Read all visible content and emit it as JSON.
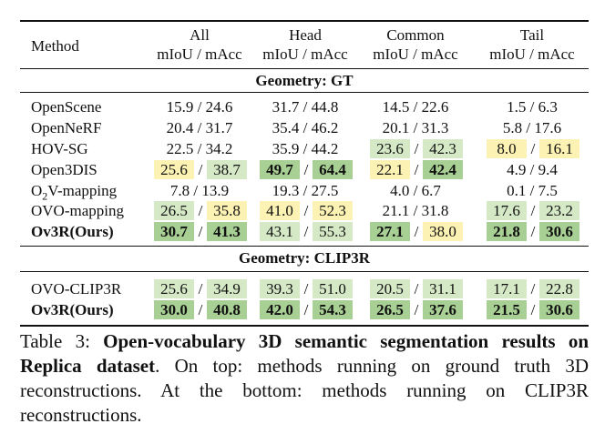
{
  "colors": {
    "light_green": "#d5e9c7",
    "dark_green": "#a8cf94",
    "yellow": "#fcf2b4"
  },
  "table": {
    "header": {
      "method": "Method",
      "groups": [
        "All",
        "Head",
        "Common",
        "Tail"
      ],
      "metric": "mIoU / mAcc"
    },
    "sections": [
      {
        "title": "Geometry: GT",
        "rows": [
          {
            "method": "OpenScene",
            "bold": false,
            "cells": [
              {
                "miou": "15.9",
                "macc": "24.6",
                "mc": "",
                "ac": "",
                "mb": false,
                "ab": false
              },
              {
                "miou": "31.7",
                "macc": "44.8",
                "mc": "",
                "ac": "",
                "mb": false,
                "ab": false
              },
              {
                "miou": "14.5",
                "macc": "22.6",
                "mc": "",
                "ac": "",
                "mb": false,
                "ab": false
              },
              {
                "miou": "1.5",
                "macc": "6.3",
                "mc": "",
                "ac": "",
                "mb": false,
                "ab": false
              }
            ]
          },
          {
            "method": "OpenNeRF",
            "bold": false,
            "cells": [
              {
                "miou": "20.4",
                "macc": "31.7",
                "mc": "",
                "ac": "",
                "mb": false,
                "ab": false
              },
              {
                "miou": "35.4",
                "macc": "46.2",
                "mc": "",
                "ac": "",
                "mb": false,
                "ab": false
              },
              {
                "miou": "20.1",
                "macc": "31.3",
                "mc": "",
                "ac": "",
                "mb": false,
                "ab": false
              },
              {
                "miou": "5.8",
                "macc": "17.6",
                "mc": "",
                "ac": "",
                "mb": false,
                "ab": false
              }
            ]
          },
          {
            "method": "HOV-SG",
            "bold": false,
            "cells": [
              {
                "miou": "22.5",
                "macc": "34.2",
                "mc": "",
                "ac": "",
                "mb": false,
                "ab": false
              },
              {
                "miou": "35.9",
                "macc": "44.2",
                "mc": "",
                "ac": "",
                "mb": false,
                "ab": false
              },
              {
                "miou": "23.6",
                "macc": "42.3",
                "mc": "lg",
                "ac": "lg",
                "mb": false,
                "ab": false
              },
              {
                "miou": "8.0",
                "macc": "16.1",
                "mc": "y",
                "ac": "y",
                "mb": false,
                "ab": false
              }
            ]
          },
          {
            "method": "Open3DIS",
            "bold": false,
            "cells": [
              {
                "miou": "25.6",
                "macc": "38.7",
                "mc": "y",
                "ac": "lg",
                "mb": false,
                "ab": false
              },
              {
                "miou": "49.7",
                "macc": "64.4",
                "mc": "dg",
                "ac": "dg",
                "mb": true,
                "ab": true
              },
              {
                "miou": "22.1",
                "macc": "42.4",
                "mc": "y",
                "ac": "dg",
                "mb": false,
                "ab": true
              },
              {
                "miou": "4.9",
                "macc": "9.4",
                "mc": "",
                "ac": "",
                "mb": false,
                "ab": false
              }
            ]
          },
          {
            "method": "O2V-mapping",
            "bold": false,
            "sub": true,
            "cells": [
              {
                "miou": "7.8",
                "macc": "13.9",
                "mc": "",
                "ac": "",
                "mb": false,
                "ab": false
              },
              {
                "miou": "19.3",
                "macc": "27.5",
                "mc": "",
                "ac": "",
                "mb": false,
                "ab": false
              },
              {
                "miou": "4.0",
                "macc": "6.7",
                "mc": "",
                "ac": "",
                "mb": false,
                "ab": false
              },
              {
                "miou": "0.1",
                "macc": "7.5",
                "mc": "",
                "ac": "",
                "mb": false,
                "ab": false
              }
            ]
          },
          {
            "method": "OVO-mapping",
            "bold": false,
            "cells": [
              {
                "miou": "26.5",
                "macc": "35.8",
                "mc": "lg",
                "ac": "y",
                "mb": false,
                "ab": false
              },
              {
                "miou": "41.0",
                "macc": "52.3",
                "mc": "y",
                "ac": "y",
                "mb": false,
                "ab": false
              },
              {
                "miou": "21.1",
                "macc": "31.8",
                "mc": "",
                "ac": "",
                "mb": false,
                "ab": false
              },
              {
                "miou": "17.6",
                "macc": "23.2",
                "mc": "lg",
                "ac": "lg",
                "mb": false,
                "ab": false
              }
            ]
          },
          {
            "method": "Ov3R(Ours)",
            "bold": true,
            "cells": [
              {
                "miou": "30.7",
                "macc": "41.3",
                "mc": "dg",
                "ac": "dg",
                "mb": true,
                "ab": true
              },
              {
                "miou": "43.1",
                "macc": "55.3",
                "mc": "lg",
                "ac": "lg",
                "mb": false,
                "ab": false
              },
              {
                "miou": "27.1",
                "macc": "38.0",
                "mc": "dg",
                "ac": "y",
                "mb": true,
                "ab": false
              },
              {
                "miou": "21.8",
                "macc": "30.6",
                "mc": "dg",
                "ac": "dg",
                "mb": true,
                "ab": true
              }
            ]
          }
        ]
      },
      {
        "title": "Geometry: CLIP3R",
        "rows": [
          {
            "method": "OVO-CLIP3R",
            "bold": false,
            "cells": [
              {
                "miou": "25.6",
                "macc": "34.9",
                "mc": "lg",
                "ac": "lg",
                "mb": false,
                "ab": false
              },
              {
                "miou": "39.3",
                "macc": "51.0",
                "mc": "lg",
                "ac": "lg",
                "mb": false,
                "ab": false
              },
              {
                "miou": "20.5",
                "macc": "31.1",
                "mc": "lg",
                "ac": "lg",
                "mb": false,
                "ab": false
              },
              {
                "miou": "17.1",
                "macc": "22.8",
                "mc": "lg",
                "ac": "lg",
                "mb": false,
                "ab": false
              }
            ]
          },
          {
            "method": "Ov3R(Ours)",
            "bold": true,
            "cells": [
              {
                "miou": "30.0",
                "macc": "40.8",
                "mc": "dg",
                "ac": "dg",
                "mb": true,
                "ab": true
              },
              {
                "miou": "42.0",
                "macc": "54.3",
                "mc": "dg",
                "ac": "dg",
                "mb": true,
                "ab": true
              },
              {
                "miou": "26.5",
                "macc": "37.6",
                "mc": "dg",
                "ac": "dg",
                "mb": true,
                "ab": true
              },
              {
                "miou": "21.5",
                "macc": "30.6",
                "mc": "dg",
                "ac": "dg",
                "mb": true,
                "ab": true
              }
            ]
          }
        ]
      }
    ]
  },
  "caption": {
    "label": "Table 3: ",
    "bold_title": "Open-vocabulary 3D semantic segmentation results on Replica dataset",
    "body": ". On top: methods running on ground truth 3D reconstructions. At the bottom: methods running on CLIP3R reconstructions."
  }
}
